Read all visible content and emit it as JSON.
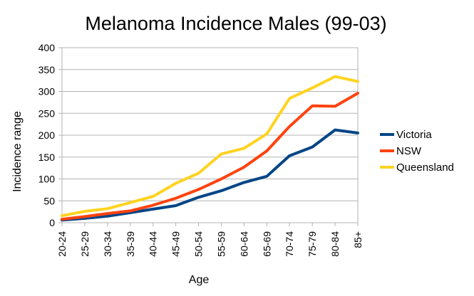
{
  "chart_data": {
    "type": "line",
    "title": "Melanoma Incidence Males (99-03)",
    "xlabel": "Age",
    "ylabel": "Incidence range",
    "ylim": [
      0,
      400
    ],
    "yticks": [
      0,
      50,
      100,
      150,
      200,
      250,
      300,
      350,
      400
    ],
    "grid": true,
    "legend_position": "right",
    "categories": [
      "20-24",
      "25-29",
      "30-34",
      "35-39",
      "40-44",
      "45-49",
      "50-54",
      "55-59",
      "60-64",
      "65-69",
      "70-74",
      "75-79",
      "80-84",
      "85+"
    ],
    "series": [
      {
        "name": "Victoria",
        "color": "#004586",
        "values": [
          6,
          10,
          15,
          23,
          31,
          39,
          58,
          73,
          92,
          106,
          153,
          173,
          212,
          205
        ]
      },
      {
        "name": "NSW",
        "color": "#ff420e",
        "values": [
          8,
          14,
          21,
          27,
          40,
          56,
          76,
          100,
          127,
          164,
          220,
          267,
          266,
          296
        ]
      },
      {
        "name": "Queensland",
        "color": "#ffd320",
        "values": [
          16,
          26,
          32,
          46,
          60,
          90,
          113,
          157,
          170,
          203,
          284,
          308,
          334,
          323
        ]
      }
    ]
  }
}
